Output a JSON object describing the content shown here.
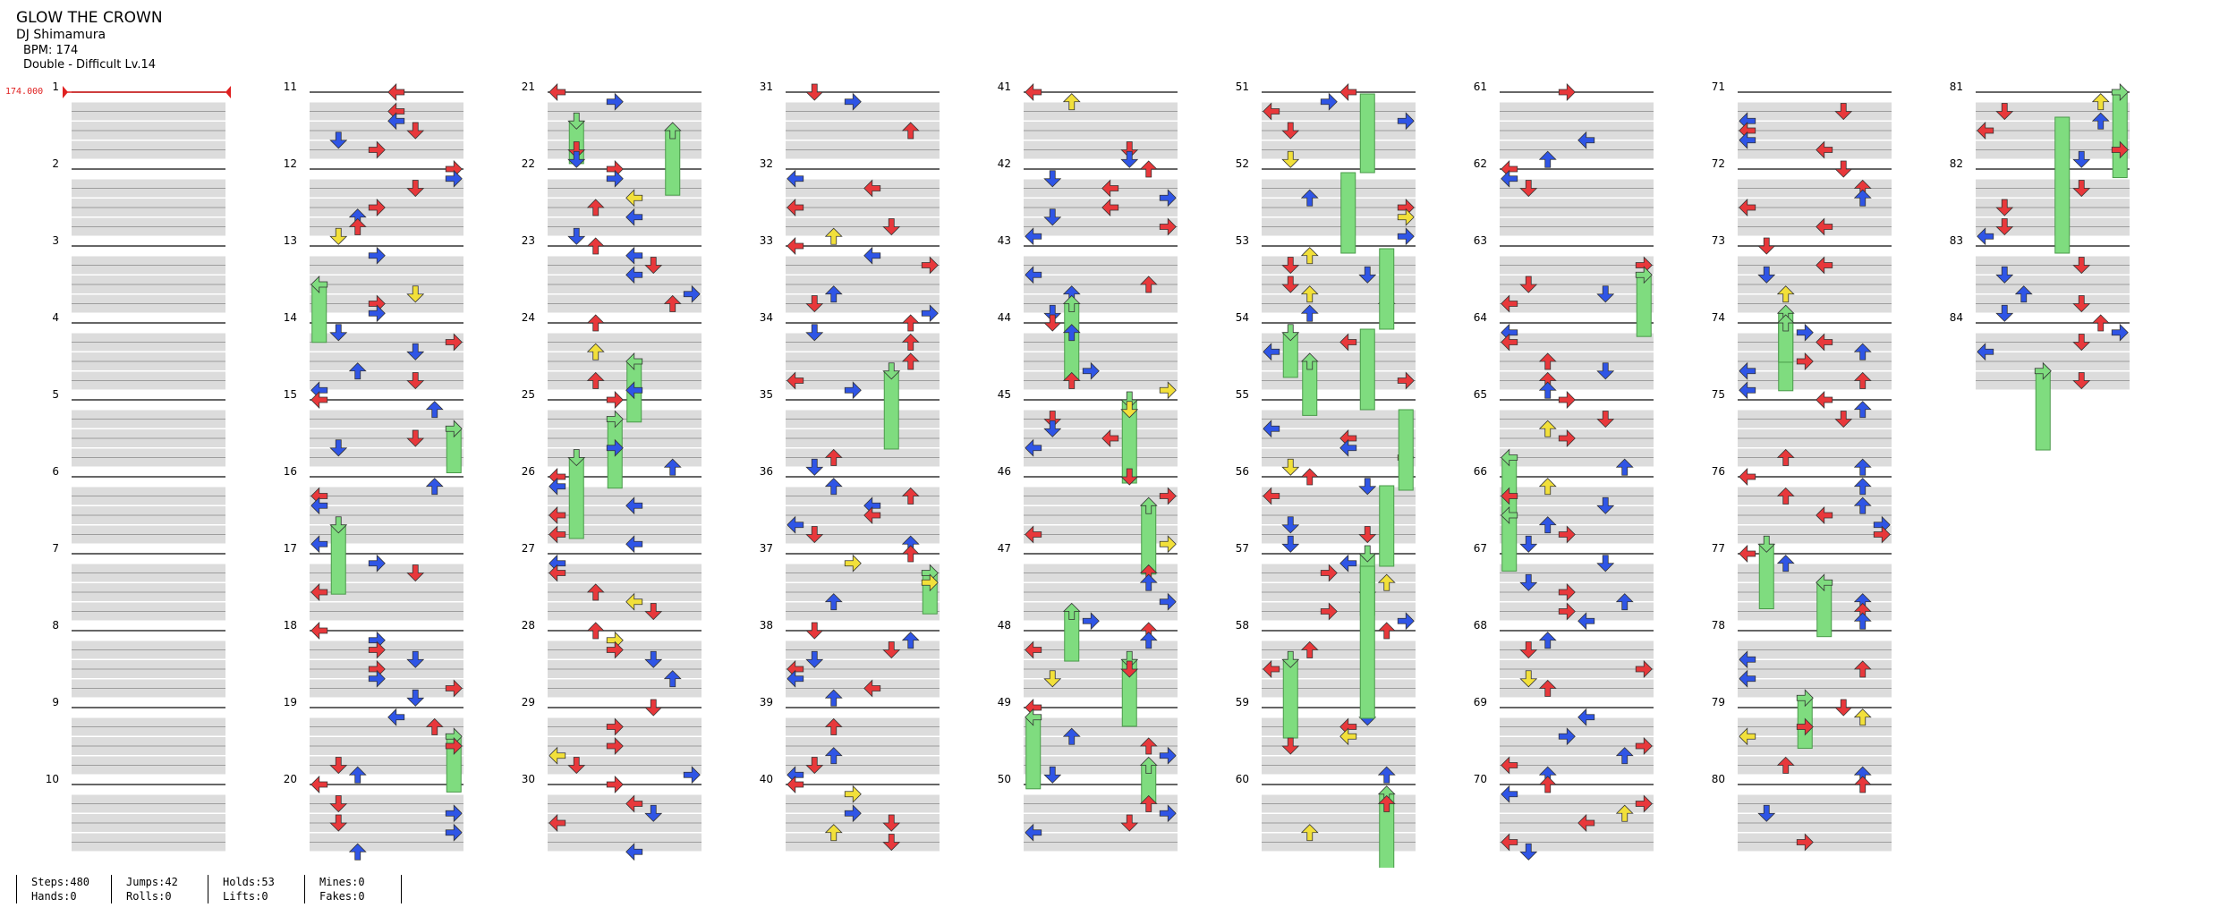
{
  "song": {
    "title": "GLOW THE CROWN",
    "artist": "DJ Shimamura",
    "bpm_text": "BPM: 174",
    "difficulty_text": "Double - Difficult  Lv.14"
  },
  "bpm_marker": "174.000",
  "measure_labels": [
    "1",
    "2",
    "3",
    "4",
    "5",
    "6",
    "7",
    "8",
    "9",
    "10",
    "11",
    "12",
    "13",
    "14",
    "15",
    "16",
    "17",
    "18",
    "19",
    "20",
    "21",
    "22",
    "23",
    "24",
    "25",
    "26",
    "27",
    "28",
    "29",
    "30",
    "31",
    "32",
    "33",
    "34",
    "35",
    "36",
    "37",
    "38",
    "39",
    "40",
    "41",
    "42",
    "43",
    "44",
    "45",
    "46",
    "47",
    "48",
    "49",
    "50",
    "51",
    "52",
    "53",
    "54",
    "55",
    "56",
    "57",
    "58",
    "59",
    "60",
    "61",
    "62",
    "63",
    "64",
    "65",
    "66",
    "67",
    "68",
    "69",
    "70",
    "71",
    "72",
    "73",
    "74",
    "75",
    "76",
    "77",
    "78",
    "79",
    "80",
    "81",
    "82",
    "83",
    "84"
  ],
  "columns": [
    {
      "first": 1,
      "count": 10
    },
    {
      "first": 11,
      "count": 10
    },
    {
      "first": 21,
      "count": 10
    },
    {
      "first": 31,
      "count": 10
    },
    {
      "first": 41,
      "count": 10
    },
    {
      "first": 51,
      "count": 10
    },
    {
      "first": 61,
      "count": 10
    },
    {
      "first": 71,
      "count": 10
    },
    {
      "first": 81,
      "count": 4
    }
  ],
  "colors": {
    "red": "#e8383b",
    "blue": "#2f55e6",
    "yellow": "#f2e03a",
    "hold": "#7fdc7f",
    "staff_band": "#dcdcdc",
    "staff_line": "#333333",
    "bpm_marker": "#e02020"
  },
  "stats": {
    "steps": "Steps:480",
    "jumps": "Jumps:42",
    "holds": "Holds:53",
    "mines": "Mines:0",
    "hands": "Hands:0",
    "rolls": "Rolls:0",
    "lifts": "Lifts:0",
    "fakes": "Fakes:0"
  }
}
